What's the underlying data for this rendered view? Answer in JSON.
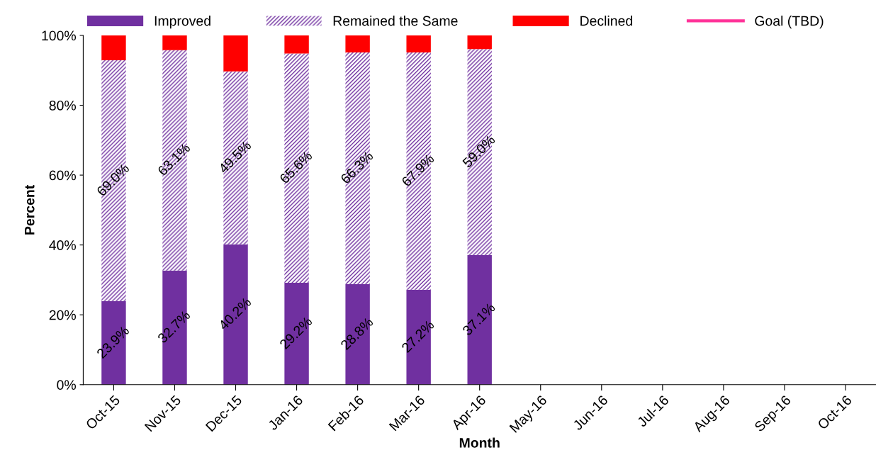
{
  "chart_data": {
    "type": "bar",
    "stacked": true,
    "xlabel": "Month",
    "ylabel": "Percent",
    "categories": [
      "Oct-15",
      "Nov-15",
      "Dec-15",
      "Jan-16",
      "Feb-16",
      "Mar-16",
      "Apr-16",
      "May-16",
      "Jun-16",
      "Jul-16",
      "Aug-16",
      "Sep-16",
      "Oct-16"
    ],
    "series": [
      {
        "name": "Improved",
        "color": "#7030a0",
        "values": [
          23.9,
          32.7,
          40.2,
          29.2,
          28.8,
          27.2,
          37.1,
          null,
          null,
          null,
          null,
          null,
          null
        ],
        "value_labels": [
          "23.9%",
          "32.7%",
          "40.2%",
          "29.2%",
          "28.8%",
          "27.2%",
          "37.1%",
          null,
          null,
          null,
          null,
          null,
          null
        ]
      },
      {
        "name": "Remained the Same",
        "color": "#7030a0",
        "values": [
          69.0,
          63.1,
          49.5,
          65.6,
          66.3,
          67.9,
          59.0,
          null,
          null,
          null,
          null,
          null,
          null
        ],
        "value_labels": [
          "69.0%",
          "63.1%",
          "49.5%",
          "65.6%",
          "66.3%",
          "67.9%",
          "59.0%",
          null,
          null,
          null,
          null,
          null,
          null
        ]
      },
      {
        "name": "Declined",
        "color": "#ff0000",
        "values": [
          7.1,
          4.2,
          10.3,
          5.2,
          4.9,
          4.9,
          3.9,
          null,
          null,
          null,
          null,
          null,
          null
        ]
      },
      {
        "name": "Goal (TBD)",
        "type": "line",
        "color": "#ff3399",
        "values": [
          null,
          null,
          null,
          null,
          null,
          null,
          null,
          null,
          null,
          null,
          null,
          null,
          null
        ]
      }
    ],
    "ylim": [
      0,
      100
    ],
    "yticks": [
      {
        "value": 0,
        "label": "0%"
      },
      {
        "value": 20,
        "label": "20%"
      },
      {
        "value": 40,
        "label": "40%"
      },
      {
        "value": 60,
        "label": "60%"
      },
      {
        "value": 80,
        "label": "80%"
      },
      {
        "value": 100,
        "label": "100%"
      }
    ],
    "grid": false,
    "legend": "top"
  }
}
